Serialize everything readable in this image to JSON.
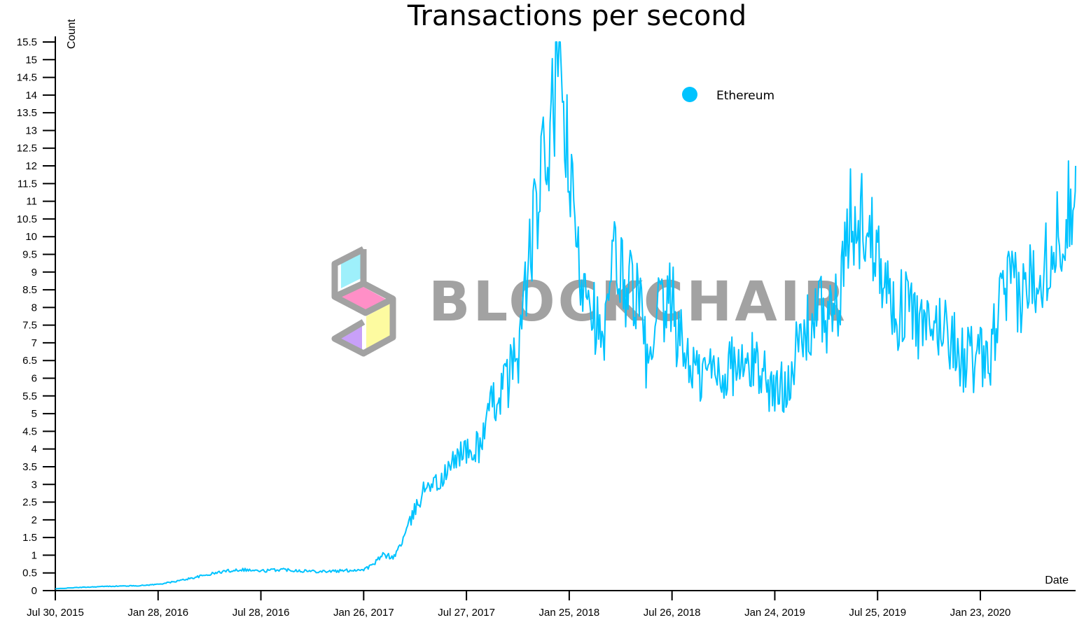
{
  "chart_data": {
    "type": "line",
    "title": "Transactions per second",
    "ylabel": "Count",
    "xlabel": "Date",
    "ylim": [
      0,
      15.5
    ],
    "y_ticks": [
      0,
      0.5,
      1,
      1.5,
      2,
      2.5,
      3,
      3.5,
      4,
      4.5,
      5,
      5.5,
      6,
      6.5,
      7,
      7.5,
      8,
      8.5,
      9,
      9.5,
      10,
      10.5,
      11,
      11.5,
      12,
      12.5,
      13,
      13.5,
      14,
      14.5,
      15,
      15.5
    ],
    "x_ticks": [
      "Jul 30, 2015",
      "Jan 28, 2016",
      "Jul 28, 2016",
      "Jan 26, 2017",
      "Jul 27, 2017",
      "Jan 25, 2018",
      "Jul 26, 2018",
      "Jan 24, 2019",
      "Jul 25, 2019",
      "Jan 23, 2020"
    ],
    "x_tick_days": [
      0,
      182,
      364,
      546,
      728,
      910,
      1092,
      1274,
      1456,
      1638
    ],
    "grid": false,
    "legend_position": "top-right",
    "color": "#00c3ff",
    "series": [
      {
        "name": "Ethereum",
        "x": [
          0,
          30,
          60,
          90,
          120,
          150,
          182,
          210,
          240,
          270,
          300,
          330,
          364,
          400,
          450,
          500,
          546,
          560,
          580,
          600,
          620,
          640,
          660,
          680,
          700,
          720,
          740,
          760,
          780,
          800,
          820,
          840,
          860,
          880,
          890,
          900,
          910,
          920,
          930,
          940,
          950,
          960,
          970,
          980,
          990,
          1000,
          1010,
          1020,
          1030,
          1040,
          1050,
          1060,
          1070,
          1080,
          1092,
          1100,
          1120,
          1140,
          1160,
          1180,
          1200,
          1220,
          1240,
          1260,
          1274,
          1290,
          1310,
          1330,
          1350,
          1370,
          1390,
          1410,
          1420,
          1430,
          1440,
          1456,
          1470,
          1490,
          1510,
          1530,
          1550,
          1570,
          1590,
          1610,
          1620,
          1630,
          1638,
          1650,
          1670,
          1690,
          1710,
          1730,
          1750,
          1770,
          1790,
          1800,
          1810,
          1820
        ],
        "values": [
          0.05,
          0.08,
          0.1,
          0.12,
          0.13,
          0.14,
          0.18,
          0.25,
          0.35,
          0.45,
          0.55,
          0.6,
          0.55,
          0.6,
          0.55,
          0.55,
          0.6,
          0.7,
          1.0,
          0.95,
          1.6,
          2.4,
          3.1,
          3.0,
          3.5,
          4.0,
          3.8,
          4.5,
          5.5,
          5.9,
          6.8,
          9.5,
          11.5,
          13.2,
          15.3,
          13.8,
          11.5,
          10.2,
          8.8,
          9.2,
          8.3,
          7.4,
          6.7,
          8.1,
          9.5,
          9.0,
          8.6,
          8.8,
          8.3,
          7.6,
          6.0,
          6.8,
          8.1,
          7.6,
          8.4,
          7.3,
          6.6,
          6.0,
          6.3,
          6.1,
          6.4,
          6.2,
          6.5,
          6.0,
          5.5,
          5.8,
          6.6,
          7.3,
          7.9,
          7.7,
          8.2,
          10.8,
          9.6,
          10.9,
          9.8,
          10.2,
          8.6,
          7.8,
          8.2,
          7.4,
          7.2,
          7.6,
          7.1,
          6.4,
          6.8,
          6.2,
          6.6,
          6.2,
          7.9,
          8.6,
          8.2,
          8.9,
          9.3,
          9.8,
          10.6,
          11.1,
          12.5,
          12.0
        ]
      }
    ]
  },
  "watermark": {
    "text": "BLOCKCHAIR",
    "text_color": "#a2a2a2",
    "logo_colors": [
      "#9ef0fb",
      "#ff8fc7",
      "#c8a0f8",
      "#fdfba0"
    ],
    "outline_color": "#a2a2a2"
  }
}
